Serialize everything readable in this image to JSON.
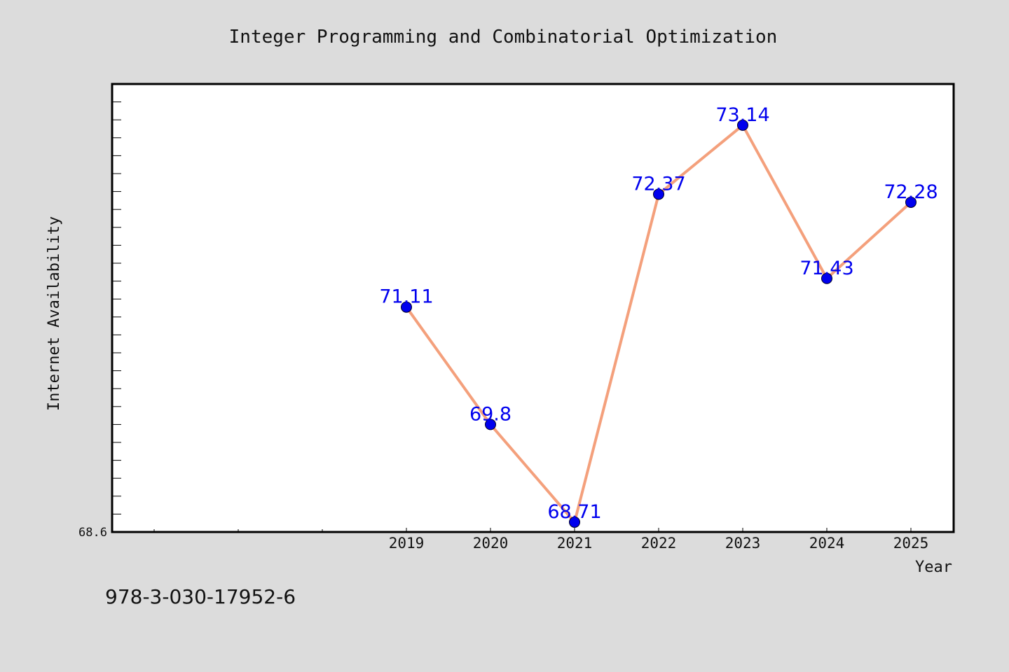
{
  "chart_data": {
    "type": "line",
    "title": "Integer Programming and Combinatorial Optimization",
    "xlabel": "Year",
    "ylabel": "Internet Availability",
    "categories": [
      "2019",
      "2020",
      "2021",
      "2022",
      "2023",
      "2024",
      "2025"
    ],
    "series": [
      {
        "values": [
          71.11,
          69.8,
          68.71,
          72.37,
          73.14,
          71.43,
          72.28
        ],
        "data_labels": [
          "71.11",
          "69.8",
          "68.71",
          "72.37",
          "73.14",
          "71.43",
          "72.28"
        ]
      }
    ],
    "ylim": [
      68.6,
      73.6
    ],
    "y_min_label": "68.6",
    "grid": false,
    "legend": "none",
    "line_color": "#f4a07c",
    "marker_color": "#0000ee",
    "label_color": "#0000ee"
  },
  "footer": {
    "isbn": "978-3-030-17952-6"
  }
}
